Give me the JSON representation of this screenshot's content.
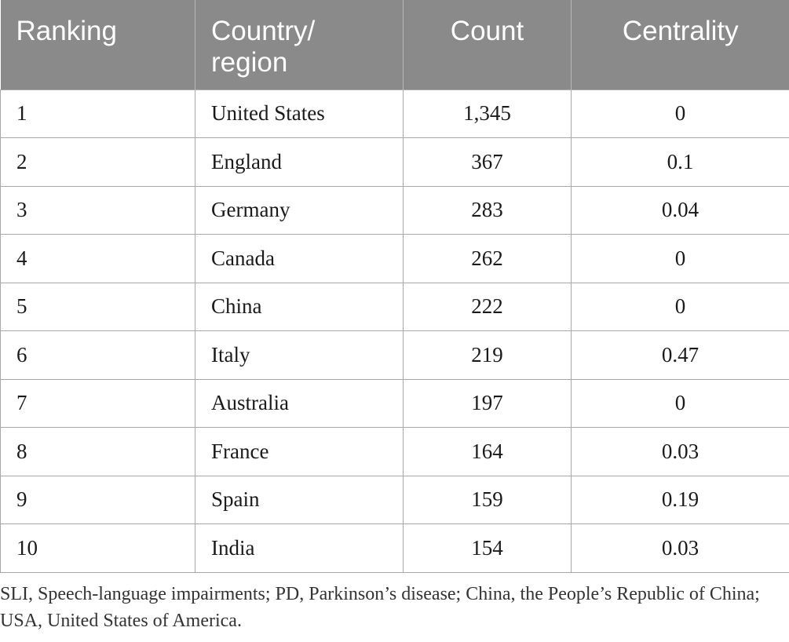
{
  "table": {
    "headers": [
      {
        "line1": "Ranking",
        "line2": ""
      },
      {
        "line1": "Country/",
        "line2": "region"
      },
      {
        "line1": "Count",
        "line2": ""
      },
      {
        "line1": "Centrality",
        "line2": ""
      }
    ],
    "rows": [
      {
        "ranking": "1",
        "country": "United States",
        "count": "1,345",
        "centrality": "0"
      },
      {
        "ranking": "2",
        "country": "England",
        "count": "367",
        "centrality": "0.1"
      },
      {
        "ranking": "3",
        "country": "Germany",
        "count": "283",
        "centrality": "0.04"
      },
      {
        "ranking": "4",
        "country": "Canada",
        "count": "262",
        "centrality": "0"
      },
      {
        "ranking": "5",
        "country": "China",
        "count": "222",
        "centrality": "0"
      },
      {
        "ranking": "6",
        "country": "Italy",
        "count": "219",
        "centrality": "0.47"
      },
      {
        "ranking": "7",
        "country": "Australia",
        "count": "197",
        "centrality": "0"
      },
      {
        "ranking": "8",
        "country": "France",
        "count": "164",
        "centrality": "0.03"
      },
      {
        "ranking": "9",
        "country": "Spain",
        "count": "159",
        "centrality": "0.19"
      },
      {
        "ranking": "10",
        "country": "India",
        "count": "154",
        "centrality": "0.03"
      }
    ]
  },
  "footnote": "SLI, Speech-language impairments; PD, Parkinson’s disease; China, the People’s Republic of China; USA, United States of America.",
  "colors": {
    "header_bg": "#8a8a8a",
    "header_text": "#ffffff",
    "grid_line": "#a8a8a8"
  }
}
